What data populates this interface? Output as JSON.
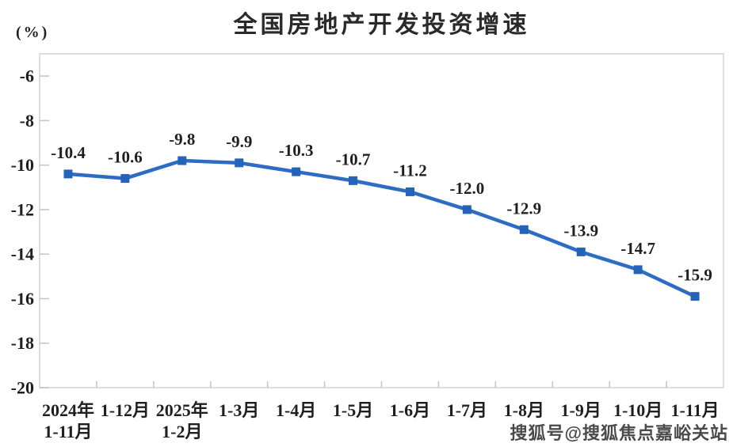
{
  "title": "全国房地产开发投资增速",
  "y_unit_label": "(%)",
  "watermark": {
    "text": "搜狐号@搜狐焦点嘉峪关站"
  },
  "colors": {
    "line": "#2D6CC2",
    "marker": "#2463B8",
    "axis": "#D5D5D5",
    "tick": "#C6C6C6",
    "text": "#1F1F1F",
    "title": "#2A2A2A",
    "watermark": "#4A4A4A"
  },
  "chart_data": {
    "type": "line",
    "title": "全国房地产开发投资增速",
    "categories": [
      "2024年\n1-11月",
      "1-12月",
      "2025年\n1-2月",
      "1-3月",
      "1-4月",
      "1-5月",
      "1-6月",
      "1-7月",
      "1-8月",
      "1-9月",
      "1-10月",
      "1-11月"
    ],
    "values": [
      -10.4,
      -10.6,
      -9.8,
      -9.9,
      -10.3,
      -10.7,
      -11.2,
      -12,
      -12.9,
      -13.9,
      -14.7,
      -15.9
    ],
    "labels": [
      "-10.4",
      "-10.6",
      "-9.8",
      "-9.9",
      "-10.3",
      "-10.7",
      "-11.2",
      "-12.0",
      "-12.9",
      "-13.9",
      "-14.7",
      "-15.9"
    ],
    "ylabel": "(%)",
    "xlabel": "",
    "ylim": [
      -20,
      -5
    ],
    "yticks": [
      -6,
      -8,
      -10,
      -12,
      -14,
      -16,
      -18,
      -20
    ],
    "ytick_labels": [
      "-6",
      "-8",
      "-10",
      "-12",
      "-14",
      "-16",
      "-18",
      "-20"
    ],
    "grid": false,
    "legend": false,
    "marker": "square",
    "data_labels": true
  }
}
